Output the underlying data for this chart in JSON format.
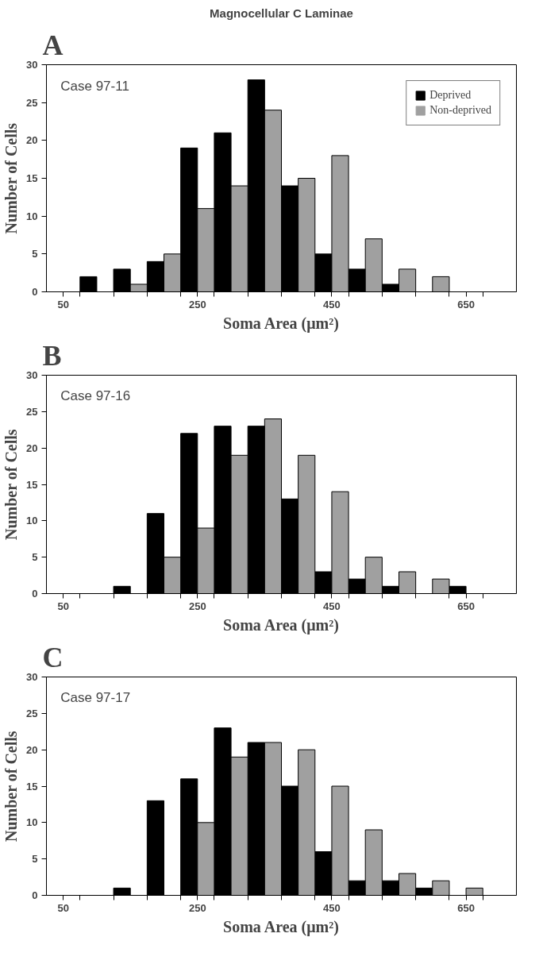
{
  "chart_data": [
    {
      "type": "bar",
      "title": "Magnocellular C Laminae",
      "subtitle": "A",
      "xlabel": "Soma Area (μm²)",
      "ylabel": "Number of Cells",
      "annotations": [
        "Case 97-11"
      ],
      "x": [
        50,
        100,
        150,
        200,
        250,
        300,
        350,
        400,
        450,
        500,
        550,
        600,
        650,
        700
      ],
      "series": [
        {
          "name": "Deprived",
          "color": "#000000",
          "values": [
            0,
            2,
            3,
            4,
            19,
            21,
            28,
            14,
            5,
            3,
            1,
            0,
            0,
            0
          ]
        },
        {
          "name": "Non-deprived",
          "color": "#a0a0a0",
          "values": [
            0,
            0,
            1,
            5,
            11,
            14,
            24,
            15,
            18,
            7,
            3,
            2,
            0,
            0
          ]
        }
      ],
      "xlim": [
        25,
        725
      ],
      "xticks": [
        50,
        {
          "value": 75,
          "label": null
        },
        {
          "value": 125,
          "label": null
        },
        {
          "value": 175,
          "label": null
        },
        {
          "value": 225,
          "label": null
        },
        250,
        {
          "value": 275,
          "label": null
        },
        {
          "value": 325,
          "label": null
        },
        {
          "value": 375,
          "label": null
        },
        {
          "value": 425,
          "label": null
        },
        450,
        {
          "value": 475,
          "label": null
        },
        {
          "value": 525,
          "label": null
        },
        {
          "value": 575,
          "label": null
        },
        {
          "value": 625,
          "label": null
        },
        650,
        {
          "value": 675,
          "label": null
        }
      ],
      "ylim": [
        0,
        30
      ],
      "yticks": [
        0,
        5,
        10,
        15,
        20,
        25,
        30
      ],
      "grid": false,
      "legend": "top right"
    },
    {
      "type": "bar",
      "subtitle": "B",
      "xlabel": "Soma Area (μm²)",
      "ylabel": "Number of Cells",
      "annotations": [
        "Case 97-16"
      ],
      "x": [
        50,
        100,
        150,
        200,
        250,
        300,
        350,
        400,
        450,
        500,
        550,
        600,
        650,
        700
      ],
      "series": [
        {
          "color": "#000000",
          "values": [
            0,
            0,
            1,
            11,
            22,
            23,
            23,
            13,
            3,
            2,
            1,
            0,
            1,
            0
          ]
        },
        {
          "color": "#a0a0a0",
          "values": [
            0,
            0,
            0,
            5,
            9,
            19,
            24,
            19,
            14,
            5,
            3,
            2,
            0,
            0
          ]
        }
      ],
      "xlim": [
        25,
        725
      ],
      "xticks": [
        50,
        {
          "value": 75,
          "label": null
        },
        {
          "value": 125,
          "label": null
        },
        {
          "value": 175,
          "label": null
        },
        {
          "value": 225,
          "label": null
        },
        250,
        {
          "value": 275,
          "label": null
        },
        {
          "value": 325,
          "label": null
        },
        {
          "value": 375,
          "label": null
        },
        {
          "value": 425,
          "label": null
        },
        450,
        {
          "value": 475,
          "label": null
        },
        {
          "value": 525,
          "label": null
        },
        {
          "value": 575,
          "label": null
        },
        {
          "value": 625,
          "label": null
        },
        650,
        {
          "value": 675,
          "label": null
        }
      ],
      "ylim": [
        0,
        30
      ],
      "yticks": [
        0,
        5,
        10,
        15,
        20,
        25,
        30
      ],
      "grid": false
    },
    {
      "type": "bar",
      "subtitle": "C",
      "xlabel": "Soma Area (μm²)",
      "ylabel": "Number of Cells",
      "annotations": [
        "Case 97-17"
      ],
      "x": [
        50,
        100,
        150,
        200,
        250,
        300,
        350,
        400,
        450,
        500,
        550,
        600,
        650,
        700
      ],
      "series": [
        {
          "color": "#000000",
          "values": [
            0,
            0,
            1,
            13,
            16,
            23,
            21,
            15,
            6,
            2,
            2,
            1,
            0,
            0
          ]
        },
        {
          "color": "#a0a0a0",
          "values": [
            0,
            0,
            0,
            0,
            10,
            19,
            21,
            20,
            15,
            9,
            3,
            2,
            1,
            0
          ]
        }
      ],
      "xlim": [
        25,
        725
      ],
      "xticks": [
        50,
        {
          "value": 75,
          "label": null
        },
        {
          "value": 125,
          "label": null
        },
        {
          "value": 175,
          "label": null
        },
        {
          "value": 225,
          "label": null
        },
        250,
        {
          "value": 275,
          "label": null
        },
        {
          "value": 325,
          "label": null
        },
        {
          "value": 375,
          "label": null
        },
        {
          "value": 425,
          "label": null
        },
        450,
        {
          "value": 475,
          "label": null
        },
        {
          "value": 525,
          "label": null
        },
        {
          "value": 575,
          "label": null
        },
        {
          "value": 625,
          "label": null
        },
        650,
        {
          "value": 675,
          "label": null
        }
      ],
      "ylim": [
        0,
        30
      ],
      "yticks": [
        0,
        5,
        10,
        15,
        20,
        25,
        30
      ],
      "grid": false
    }
  ]
}
